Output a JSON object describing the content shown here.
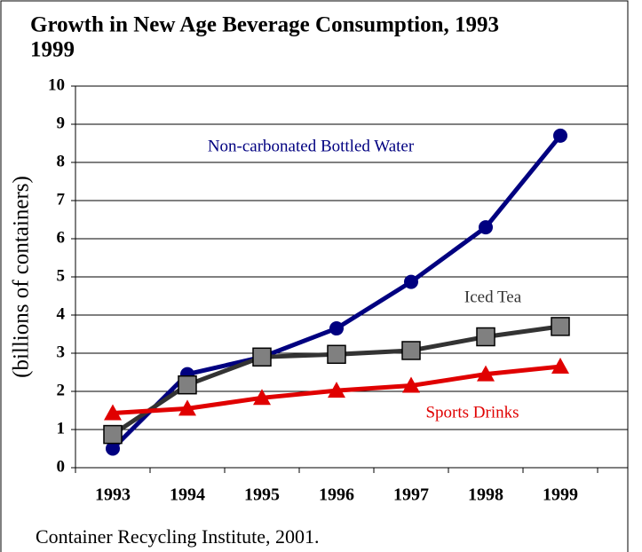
{
  "chart_data": {
    "type": "line",
    "title": [
      "Growth in New Age Beverage Consumption, 1993",
      "1999"
    ],
    "y_label": "(billions of containers)",
    "source": "Container Recycling Institute, 2001.",
    "categories": [
      "1993",
      "1994",
      "1995",
      "1996",
      "1997",
      "1998",
      "1999"
    ],
    "series": [
      {
        "name": "Non-carbonated Bottled Water",
        "color": "#000080",
        "marker": "circle",
        "values": [
          0.5,
          2.45,
          2.9,
          3.65,
          4.87,
          6.3,
          8.7
        ]
      },
      {
        "name": "Iced Tea",
        "color": "#333333",
        "marker": "square",
        "values": [
          0.87,
          2.17,
          2.9,
          2.97,
          3.07,
          3.43,
          3.7
        ]
      },
      {
        "name": "Sports Drinks",
        "color": "#e00000",
        "marker": "triangle",
        "values": [
          1.43,
          1.55,
          1.83,
          2.02,
          2.15,
          2.45,
          2.65
        ]
      }
    ],
    "ylim": [
      0,
      10
    ],
    "yticks": [
      0,
      1,
      2,
      3,
      4,
      5,
      6,
      7,
      8,
      9,
      10
    ],
    "grid": true
  }
}
